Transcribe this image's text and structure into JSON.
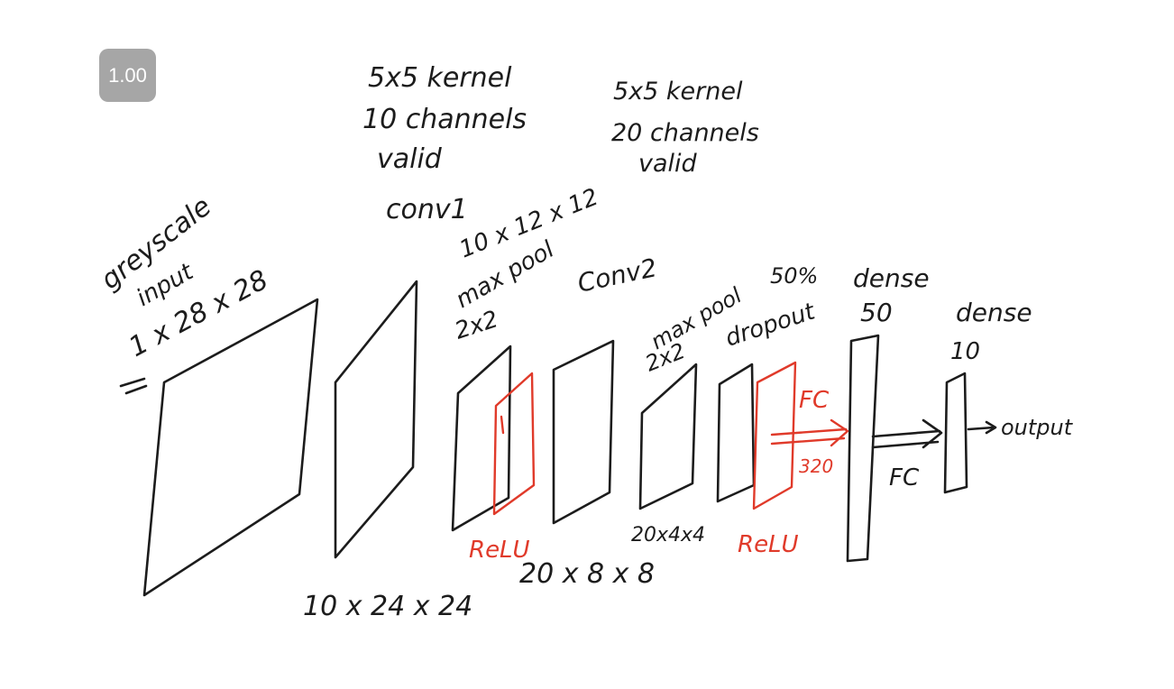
{
  "zoom": "1.00",
  "annotations": {
    "conv1_spec": [
      "5x5 kernel",
      "10 channels",
      "valid"
    ],
    "conv1": "conv1",
    "conv2_spec": [
      "5x5 kernel",
      "20 channels",
      "valid"
    ],
    "input_label": [
      "greyscale",
      "input",
      "1 x 28 x 28"
    ],
    "pool1_shape": "10 x 12 x 12",
    "pool1": [
      "max pool",
      "2x2"
    ],
    "conv2": "Conv2",
    "pool2": [
      "max pool",
      "2x2"
    ],
    "dropout": [
      "50%",
      "dropout"
    ],
    "dense1": [
      "dense",
      "50"
    ],
    "dense2": [
      "dense",
      "10"
    ],
    "fc1": "FC",
    "fc1_size": "320",
    "fc2": "FC",
    "output": "output",
    "relu1": "ReLU",
    "relu2": "ReLU",
    "conv1_shape": "10 x 24 x 24",
    "conv2_shape": "20 x 8 x 8",
    "pool2_shape": "20x4x4"
  }
}
